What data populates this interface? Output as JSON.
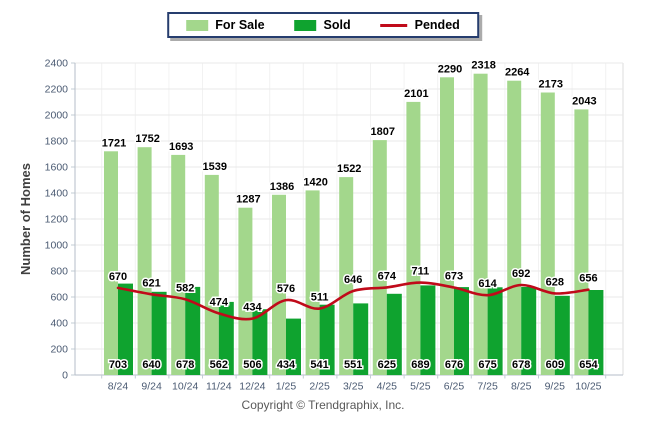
{
  "legend": {
    "items": [
      {
        "label": "For Sale",
        "marker": "swatch",
        "color": "#a3d78c"
      },
      {
        "label": "Sold",
        "marker": "swatch",
        "color": "#0fa32f"
      },
      {
        "label": "Pended",
        "marker": "line",
        "color": "#c00a1a"
      }
    ]
  },
  "chart_data": {
    "type": "bar",
    "categories": [
      "8/24",
      "9/24",
      "10/24",
      "11/24",
      "12/24",
      "1/25",
      "2/25",
      "3/25",
      "4/25",
      "5/25",
      "6/25",
      "7/25",
      "8/25",
      "9/25",
      "10/25"
    ],
    "series": [
      {
        "name": "For Sale",
        "type": "bar",
        "color": "#a3d78c",
        "values": [
          1721,
          1752,
          1693,
          1539,
          1287,
          1386,
          1420,
          1522,
          1807,
          2101,
          2290,
          2318,
          2264,
          2173,
          2043
        ]
      },
      {
        "name": "Sold",
        "type": "bar",
        "color": "#0fa32f",
        "values": [
          703,
          640,
          678,
          562,
          506,
          434,
          541,
          551,
          625,
          689,
          676,
          675,
          678,
          609,
          654
        ]
      },
      {
        "name": "Pended",
        "type": "line",
        "color": "#c00a1a",
        "values": [
          670,
          621,
          582,
          474,
          434,
          576,
          511,
          646,
          674,
          711,
          673,
          614,
          692,
          628,
          656
        ]
      }
    ],
    "title": "",
    "xlabel": "",
    "ylabel": "Number of Homes",
    "ylim": [
      0,
      2400
    ],
    "ytick_step": 200,
    "grid": true,
    "legend_position": "top-center"
  },
  "footer": {
    "copyright": "Copyright © Trendgraphix, Inc."
  },
  "colors": {
    "background": "#ffffff",
    "grid_horizontal": "#e9e9e9",
    "grid_vertical": "#f2f2f2",
    "right_border": "#dcdcdc",
    "axis": "#b6bec8",
    "tick": "#c3ccd6",
    "axis_tick_label": "#4a5a72",
    "axis_title": "#3f3f3f",
    "value_label": "#000000",
    "value_label_halo": "#ffffff",
    "legend_border": "#263d6e",
    "legend_shadow": "#ababab",
    "copyright_text": "#595959"
  }
}
